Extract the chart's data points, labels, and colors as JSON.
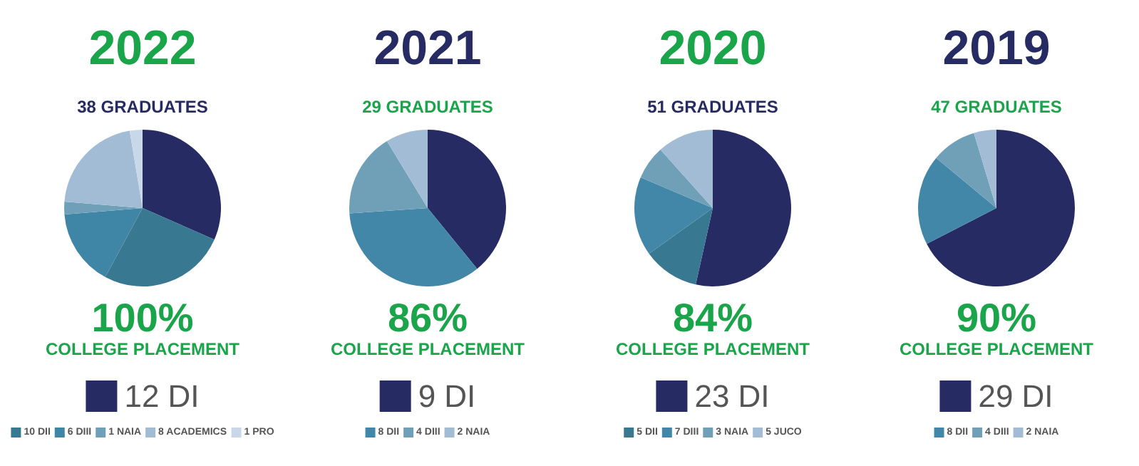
{
  "chart_data": [
    {
      "type": "pie",
      "title": "2022",
      "subtitle": "38 GRADUATES",
      "annotations": [
        "100%",
        "COLLEGE PLACEMENT"
      ],
      "categories": [
        "12 DI",
        "10 DII",
        "6 DIII",
        "1 NAIA",
        "8 ACADEMICS",
        "1 PRO"
      ],
      "values": [
        12,
        10,
        6,
        1,
        8,
        1
      ],
      "colors": [
        "#262b63",
        "#387890",
        "#3f86a6",
        "#6fa0b8",
        "#a3bcd6",
        "#c9d8e8"
      ],
      "legend": "bottom"
    },
    {
      "type": "pie",
      "title": "2021",
      "subtitle": "29 GRADUATES",
      "annotations": [
        "86%",
        "COLLEGE PLACEMENT"
      ],
      "categories": [
        "9 DI",
        "8 DII",
        "4 DIII",
        "2 NAIA"
      ],
      "values": [
        9,
        8,
        4,
        2
      ],
      "colors": [
        "#262b63",
        "#4287a7",
        "#6fa0b8",
        "#a3bcd6"
      ],
      "legend": "bottom"
    },
    {
      "type": "pie",
      "title": "2020",
      "subtitle": "51 GRADUATES",
      "annotations": [
        "84%",
        "COLLEGE PLACEMENT"
      ],
      "categories": [
        "23 DI",
        "5 DII",
        "7 DIII",
        "3 NAIA",
        "5 JUCO"
      ],
      "values": [
        23,
        5,
        7,
        3,
        5
      ],
      "colors": [
        "#262b63",
        "#387890",
        "#4287a7",
        "#6fa0b8",
        "#a3bcd6"
      ],
      "legend": "bottom"
    },
    {
      "type": "pie",
      "title": "2019",
      "subtitle": "47 GRADUATES",
      "annotations": [
        "90%",
        "COLLEGE PLACEMENT"
      ],
      "categories": [
        "29 DI",
        "8 DII",
        "4 DIII",
        "2 NAIA"
      ],
      "values": [
        29,
        8,
        4,
        2
      ],
      "colors": [
        "#262b63",
        "#4287a7",
        "#6fa0b8",
        "#a3bcd6"
      ],
      "legend": "bottom"
    }
  ]
}
